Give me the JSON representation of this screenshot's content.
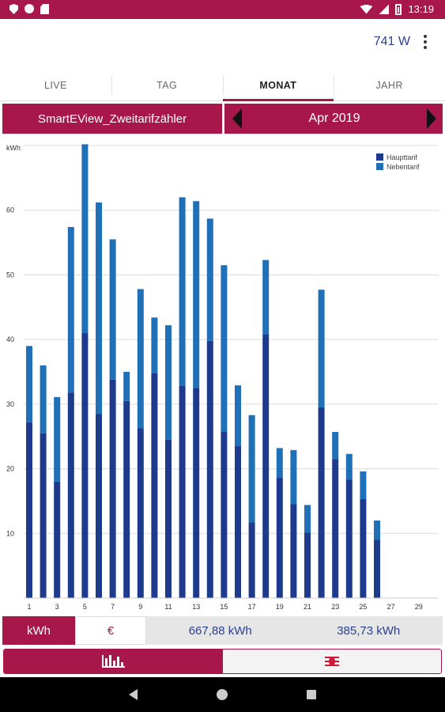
{
  "status_bar": {
    "time": "13:19",
    "icons": [
      "shield-icon",
      "circle-icon",
      "sim-card-icon",
      "wifi-icon",
      "signal-icon",
      "battery-icon"
    ]
  },
  "header": {
    "power": "741 W",
    "menu_icon": "more-vert-icon"
  },
  "tabs": [
    {
      "label": "LIVE"
    },
    {
      "label": "TAG"
    },
    {
      "label": "MONAT",
      "active": true
    },
    {
      "label": "JAHR"
    }
  ],
  "selector": {
    "device": "SmartEView_Zweitarifzähler",
    "period": "Apr 2019"
  },
  "chart_data": {
    "type": "bar",
    "stacked": true,
    "ylabel": "kWh",
    "ylim": [
      0,
      70
    ],
    "yticks": [
      10,
      20,
      30,
      40,
      50,
      60
    ],
    "x": [
      1,
      2,
      3,
      4,
      5,
      6,
      7,
      8,
      9,
      10,
      11,
      12,
      13,
      14,
      15,
      16,
      17,
      18,
      19,
      20,
      21,
      22,
      23,
      24,
      25,
      26,
      27,
      28,
      29,
      30
    ],
    "xtick_labels": [
      "1",
      "3",
      "5",
      "7",
      "9",
      "11",
      "13",
      "15",
      "17",
      "19",
      "21",
      "23",
      "25",
      "27",
      "29"
    ],
    "series": [
      {
        "name": "Haupttarif",
        "color": "#1e3a8c",
        "values": [
          27.2,
          25.5,
          18,
          31.8,
          41,
          28.5,
          33.8,
          30.5,
          26.3,
          34.8,
          24.5,
          32.8,
          32.5,
          39.8,
          25.8,
          23.5,
          11.7,
          40.8,
          18.6,
          14.5,
          10.1,
          29.5,
          21.5,
          18.3,
          15.3,
          9.0,
          0,
          0,
          0,
          0
        ]
      },
      {
        "name": "Nebentarif",
        "color": "#1f70b8",
        "values": [
          11.8,
          10.5,
          13.1,
          25.6,
          29.2,
          32.7,
          21.7,
          4.5,
          21.5,
          8.6,
          17.7,
          29.2,
          28.9,
          18.9,
          25.7,
          9.4,
          16.6,
          11.5,
          4.6,
          8.4,
          4.3,
          18.2,
          4.2,
          4.0,
          4.3,
          3.0,
          0,
          0,
          0,
          0
        ]
      }
    ],
    "legend_position": "top-right",
    "grid": true
  },
  "summary": {
    "unit_kwh": "kWh",
    "unit_eur": "€",
    "total_1": "667,88 kWh",
    "total_2": "385,73 kWh"
  },
  "modes": [
    {
      "name": "bar-chart-icon",
      "active": true
    },
    {
      "name": "bug-icon",
      "active": false
    }
  ],
  "nav": [
    "back-icon",
    "home-icon",
    "recents-icon"
  ]
}
